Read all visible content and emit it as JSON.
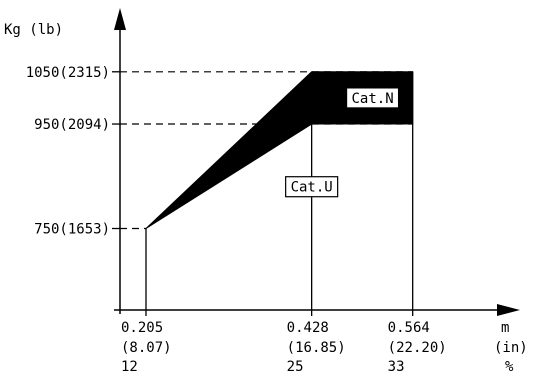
{
  "chart_data": {
    "type": "area",
    "title": "",
    "ylabel": "Kg (lb)",
    "xlabel_units": [
      "m",
      "(in)",
      "%"
    ],
    "x_ticks": [
      {
        "value": 0.205,
        "lines": [
          "0.205",
          "(8.07)",
          "12"
        ]
      },
      {
        "value": 0.428,
        "lines": [
          "0.428",
          "(16.85)",
          "25"
        ]
      },
      {
        "value": 0.564,
        "lines": [
          "0.564",
          "(22.20)",
          "33"
        ]
      }
    ],
    "y_ticks": [
      {
        "value": 750,
        "label": "750(1653)"
      },
      {
        "value": 950,
        "label": "950(2094)"
      },
      {
        "value": 1050,
        "label": "1050(2315)"
      }
    ],
    "xlim": [
      0.17,
      0.66
    ],
    "ylim": [
      594,
      1130
    ],
    "series": [
      {
        "name": "Cat.N",
        "upper": [
          [
            0.205,
            750
          ],
          [
            0.428,
            1050
          ],
          [
            0.564,
            1050
          ]
        ],
        "lower": [
          [
            0.205,
            750
          ],
          [
            0.428,
            950
          ],
          [
            0.564,
            950
          ]
        ]
      }
    ],
    "region_labels": [
      {
        "text": "Cat.N",
        "x": 0.51,
        "y": 1000
      },
      {
        "text": "Cat.U",
        "x": 0.428,
        "y": 830
      }
    ],
    "colors": {
      "axis": "#000000",
      "band_fill": "#000000",
      "background": "#ffffff",
      "label_box": "#ffffff"
    }
  }
}
